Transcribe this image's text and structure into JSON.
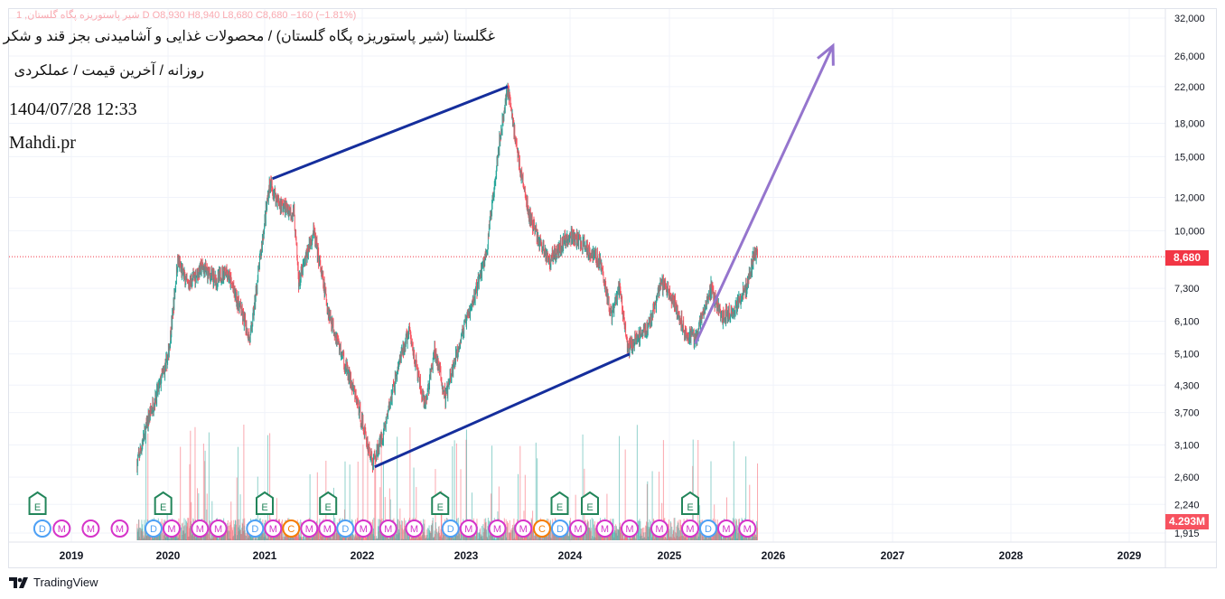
{
  "header": {
    "ohlc": "1 ,شیر پاستوریزه پگاه گلستان   D  O8,930  H8,940  L8,680  C8,680  −160 (−1.81%)",
    "title": "غگلستا (شیر پاستوریزه پگاه گلستان) / محصولات غذایی و آشامیدنی بجز قند و شکر",
    "subtitle": "روزانه / آخرین قیمت / عملکردی",
    "datetime": "1404/07/28 12:33",
    "author": "Mahdi.pr"
  },
  "last_price_label": "8,680",
  "volume_label": "4.293M",
  "footer": {
    "brand": "TradingView"
  },
  "colors": {
    "up": "#26a69a",
    "down": "#f7525f",
    "trend": "#152e9c",
    "arrow": "#9575cd",
    "grid": "#f0f3fa"
  },
  "chart_data": {
    "type": "candlestick",
    "scale": "log",
    "ylim": [
      1915,
      32000
    ],
    "yticks": [
      "32,000",
      "26,000",
      "22,000",
      "18,000",
      "15,000",
      "12,000",
      "10,000",
      "7,300",
      "6,100",
      "5,100",
      "4,300",
      "3,700",
      "3,100",
      "2,600",
      "2,240",
      "1,915"
    ],
    "ytick_values": [
      32000,
      26000,
      22000,
      18000,
      15000,
      12000,
      10000,
      7300,
      6100,
      5100,
      4300,
      3700,
      3100,
      2600,
      2240,
      1915
    ],
    "xticks": [
      "2019",
      "2020",
      "2021",
      "2022",
      "2023",
      "2024",
      "2025",
      "2026",
      "2027",
      "2028",
      "2029"
    ],
    "price_path": [
      [
        2019.68,
        2800
      ],
      [
        2019.8,
        3600
      ],
      [
        2019.9,
        4200
      ],
      [
        2020.0,
        5000
      ],
      [
        2020.05,
        6400
      ],
      [
        2020.1,
        8500
      ],
      [
        2020.2,
        7400
      ],
      [
        2020.35,
        8200
      ],
      [
        2020.5,
        7600
      ],
      [
        2020.6,
        8100
      ],
      [
        2020.75,
        6500
      ],
      [
        2020.85,
        5500
      ],
      [
        2020.95,
        8500
      ],
      [
        2021.05,
        13000
      ],
      [
        2021.15,
        11600
      ],
      [
        2021.3,
        11000
      ],
      [
        2021.35,
        7500
      ],
      [
        2021.5,
        10000
      ],
      [
        2021.65,
        6500
      ],
      [
        2021.8,
        5000
      ],
      [
        2021.95,
        3900
      ],
      [
        2022.1,
        2800
      ],
      [
        2022.2,
        3300
      ],
      [
        2022.35,
        4800
      ],
      [
        2022.45,
        5800
      ],
      [
        2022.6,
        3800
      ],
      [
        2022.7,
        5200
      ],
      [
        2022.8,
        4000
      ],
      [
        2022.95,
        5600
      ],
      [
        2023.05,
        6600
      ],
      [
        2023.2,
        9000
      ],
      [
        2023.3,
        15000
      ],
      [
        2023.4,
        22000
      ],
      [
        2023.5,
        15000
      ],
      [
        2023.6,
        11000
      ],
      [
        2023.7,
        9500
      ],
      [
        2023.8,
        8500
      ],
      [
        2024.0,
        9800
      ],
      [
        2024.15,
        9200
      ],
      [
        2024.3,
        8500
      ],
      [
        2024.42,
        6200
      ],
      [
        2024.5,
        7400
      ],
      [
        2024.58,
        5200
      ],
      [
        2024.68,
        5600
      ],
      [
        2024.8,
        6000
      ],
      [
        2024.92,
        7500
      ],
      [
        2025.02,
        7000
      ],
      [
        2025.15,
        5800
      ],
      [
        2025.25,
        5500
      ],
      [
        2025.4,
        7300
      ],
      [
        2025.5,
        6200
      ],
      [
        2025.62,
        6500
      ],
      [
        2025.75,
        7400
      ],
      [
        2025.82,
        8900
      ],
      [
        2025.85,
        8680
      ]
    ],
    "trendlines": [
      {
        "from": [
          2021.08,
          13300
        ],
        "to": [
          2023.4,
          22000
        ],
        "color": "#152e9c"
      },
      {
        "from": [
          2022.12,
          2750
        ],
        "to": [
          2024.6,
          5100
        ],
        "color": "#152e9c"
      }
    ],
    "arrow": {
      "from": [
        2025.25,
        5400
      ],
      "to": [
        2026.5,
        27500
      ],
      "color": "#9575cd"
    },
    "events": [
      {
        "t": 2018.65,
        "k": "E"
      },
      {
        "t": 2019.95,
        "k": "E"
      },
      {
        "t": 2021.0,
        "k": "E"
      },
      {
        "t": 2021.65,
        "k": "E"
      },
      {
        "t": 2022.75,
        "k": "E"
      },
      {
        "t": 2023.9,
        "k": "E"
      },
      {
        "t": 2024.2,
        "k": "E"
      },
      {
        "t": 2025.2,
        "k": "E"
      },
      {
        "t": 2018.7,
        "k": "D"
      },
      {
        "t": 2018.9,
        "k": "M"
      },
      {
        "t": 2019.2,
        "k": "M"
      },
      {
        "t": 2019.5,
        "k": "M"
      },
      {
        "t": 2019.85,
        "k": "D"
      },
      {
        "t": 2020.0,
        "k": "M"
      },
      {
        "t": 2020.33,
        "k": "M"
      },
      {
        "t": 2020.52,
        "k": "M"
      },
      {
        "t": 2020.9,
        "k": "D"
      },
      {
        "t": 2021.05,
        "k": "M"
      },
      {
        "t": 2021.1,
        "k": "C"
      },
      {
        "t": 2021.2,
        "k": "M"
      },
      {
        "t": 2021.45,
        "k": "M"
      },
      {
        "t": 2021.75,
        "k": "D"
      },
      {
        "t": 2021.9,
        "k": "M"
      },
      {
        "t": 2022.25,
        "k": "M"
      },
      {
        "t": 2022.5,
        "k": "M"
      },
      {
        "t": 2022.85,
        "k": "D"
      },
      {
        "t": 2023.0,
        "k": "M"
      },
      {
        "t": 2023.3,
        "k": "M"
      },
      {
        "t": 2023.55,
        "k": "M"
      },
      {
        "t": 2023.73,
        "k": "C"
      },
      {
        "t": 2023.88,
        "k": "D"
      },
      {
        "t": 2024.02,
        "k": "M"
      },
      {
        "t": 2024.35,
        "k": "M"
      },
      {
        "t": 2024.6,
        "k": "M"
      },
      {
        "t": 2024.9,
        "k": "M"
      },
      {
        "t": 2025.2,
        "k": "M"
      },
      {
        "t": 2025.35,
        "k": "D"
      },
      {
        "t": 2025.5,
        "k": "M"
      },
      {
        "t": 2025.75,
        "k": "M"
      }
    ]
  }
}
